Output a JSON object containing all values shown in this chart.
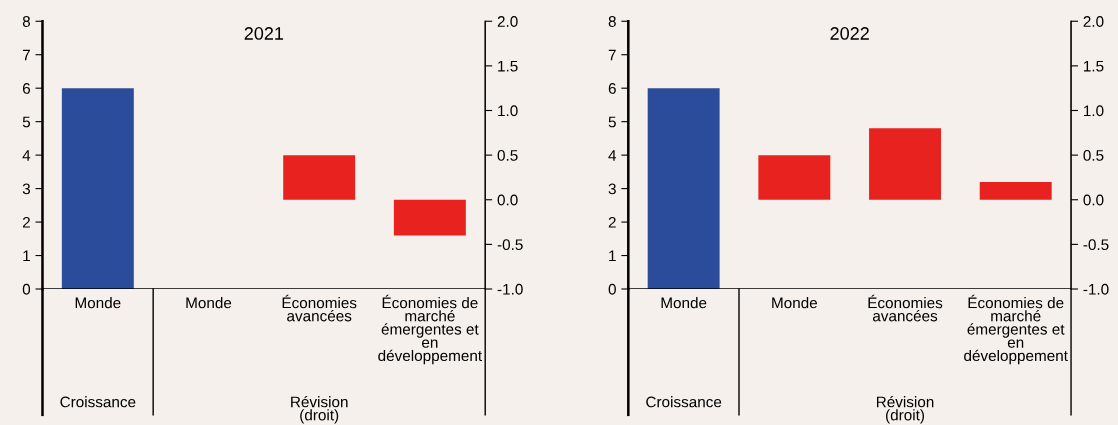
{
  "chart_data": [
    {
      "type": "bar",
      "title": "2021",
      "categories": [
        "Monde",
        "Monde",
        "Économies\navancées",
        "Économies de\nmarché\némergentes et\nen\ndéveloppement"
      ],
      "series": [
        {
          "color": "#2b4c9b",
          "values": [
            6.0,
            null,
            null,
            null
          ]
        },
        {
          "color": "#e8221e",
          "values": [
            null,
            0,
            0.5,
            -0.4
          ],
          "axis": "y2"
        }
      ],
      "ylim": [
        0,
        8
      ],
      "yticks": [
        0,
        1,
        2,
        3,
        4,
        5,
        6,
        7,
        8
      ],
      "y2lim": [
        -1,
        2
      ],
      "y2ticks": [
        {
          "value": -1,
          "label": "-1.0"
        },
        {
          "value": -0.5,
          "label": "-0.5"
        },
        {
          "value": 0,
          "label": "0.0"
        },
        {
          "value": 0.5,
          "label": "0.5"
        },
        {
          "value": 1,
          "label": "1.0"
        },
        {
          "value": 1.5,
          "label": "1.5"
        },
        {
          "value": 2,
          "label": "2.0"
        }
      ],
      "grid": false,
      "legend": false,
      "annotations": [
        "Croissance",
        "Révision\n(droit)"
      ]
    },
    {
      "type": "bar",
      "title": "2022",
      "categories": [
        "Monde",
        "Monde",
        "Économies\navancées",
        "Économies de\nmarché\némergentes et\nen\ndéveloppement"
      ],
      "series": [
        {
          "color": "#2b4c9b",
          "values": [
            6.0,
            null,
            null,
            null
          ]
        },
        {
          "color": "#e8221e",
          "values": [
            null,
            0.5,
            0.8,
            0.2
          ],
          "axis": "y2"
        }
      ],
      "ylim": [
        0,
        8
      ],
      "yticks": [
        0,
        1,
        2,
        3,
        4,
        5,
        6,
        7,
        8
      ],
      "y2lim": [
        -1,
        2
      ],
      "y2ticks": [
        {
          "value": -1,
          "label": "-1.0"
        },
        {
          "value": -0.5,
          "label": "-0.5"
        },
        {
          "value": 0,
          "label": "0.0"
        },
        {
          "value": 0.5,
          "label": "0.5"
        },
        {
          "value": 1,
          "label": "1.0"
        },
        {
          "value": 1.5,
          "label": "1.5"
        },
        {
          "value": 2,
          "label": "2.0"
        }
      ],
      "grid": false,
      "legend": false,
      "annotations": [
        "Croissance",
        "Révision\n(droit)"
      ]
    }
  ]
}
